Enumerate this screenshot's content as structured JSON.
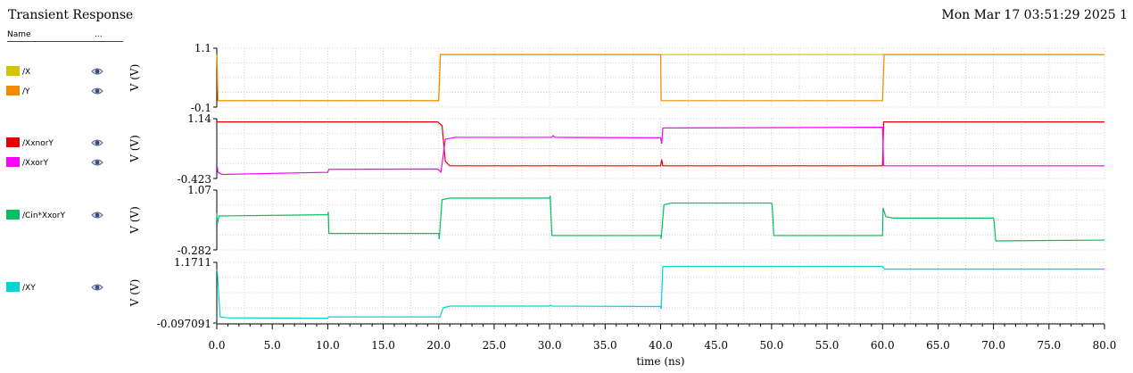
{
  "title": "Transient Response",
  "timestamp": "Mon Mar 17 03:51:29 2025  1",
  "legend": {
    "name_header": "Name",
    "more_header": "...",
    "items": [
      {
        "label": "/X",
        "color": "#d4c400"
      },
      {
        "label": "/Y",
        "color": "#f28a00"
      },
      {
        "label": "/XxnorY",
        "color": "#e60000"
      },
      {
        "label": "/XxorY",
        "color": "#ff00ff"
      },
      {
        "label": "/Cin*XxorY",
        "color": "#00c060"
      },
      {
        "label": "/XY",
        "color": "#00d6d6"
      }
    ],
    "visibility_icon": "eye-icon"
  },
  "chart_data": {
    "type": "line",
    "xlabel": "time (ns)",
    "xlim": [
      0,
      80
    ],
    "xticks": [
      "0.0",
      "5.0",
      "10.0",
      "15.0",
      "20.0",
      "25.0",
      "30.0",
      "35.0",
      "40.0",
      "45.0",
      "50.0",
      "55.0",
      "60.0",
      "65.0",
      "70.0",
      "75.0",
      "80.0"
    ],
    "grid": true,
    "panels": [
      {
        "ylabel": "V (V)",
        "ylim": [
          -0.1,
          1.1
        ],
        "ytick_labels": [
          "1.1",
          "-0.1"
        ],
        "series": [
          {
            "name": "/X",
            "color": "#d4c400",
            "x": [
              0,
              0.02,
              0.1,
              20,
              20.15,
              40,
              40.05,
              60,
              60.15,
              80
            ],
            "y": [
              1.0,
              1.0,
              0.0,
              0.0,
              1.0,
              1.0,
              1.0,
              1.0,
              1.0,
              1.0
            ]
          },
          {
            "name": "/Y",
            "color": "#f28a00",
            "x": [
              0,
              0.02,
              0.1,
              20,
              20.15,
              40,
              40.05,
              40.1,
              60,
              60.15,
              80
            ],
            "y": [
              1.0,
              1.0,
              0.0,
              0.0,
              1.0,
              1.0,
              0.0,
              0.0,
              0.0,
              1.0,
              1.0
            ]
          }
        ]
      },
      {
        "ylabel": "V (V)",
        "ylim": [
          -0.423,
          1.14
        ],
        "ytick_labels": [
          "1.14",
          "-0.423"
        ],
        "series": [
          {
            "name": "/XxnorY",
            "color": "#e60000",
            "x": [
              0,
              19.9,
              20.3,
              20.6,
              21,
              40,
              40.1,
              40.2,
              60,
              60.1,
              60.2,
              80
            ],
            "y": [
              1.1,
              1.1,
              1.0,
              0.0,
              -0.12,
              -0.12,
              0.05,
              -0.12,
              -0.12,
              1.1,
              1.1,
              1.1
            ]
          },
          {
            "name": "/XxorY",
            "color": "#ff00ff",
            "x": [
              0,
              0.05,
              0.1,
              0.5,
              10,
              10.1,
              19.9,
              20.2,
              20.6,
              21.5,
              30.2,
              30.3,
              30.5,
              40,
              40.1,
              40.2,
              60,
              60.1,
              60.2,
              80
            ],
            "y": [
              -0.15,
              -0.15,
              -0.3,
              -0.36,
              -0.3,
              -0.22,
              -0.21,
              -0.3,
              0.62,
              0.67,
              0.67,
              0.72,
              0.67,
              0.66,
              0.5,
              0.93,
              0.95,
              -0.12,
              -0.12,
              -0.12
            ]
          }
        ]
      },
      {
        "ylabel": "V (V)",
        "ylim": [
          -0.282,
          1.07
        ],
        "ytick_labels": [
          "1.07",
          "-0.282"
        ],
        "series": [
          {
            "name": "/Cin*XxorY",
            "color": "#00c060",
            "x": [
              0,
              0.05,
              0.2,
              10,
              10.05,
              10.1,
              20,
              20.05,
              20.3,
              21,
              30,
              30.05,
              30.2,
              40,
              40.05,
              40.3,
              41,
              50,
              50.05,
              50.2,
              60,
              60.05,
              60.3,
              61,
              70,
              70.05,
              70.2,
              80
            ],
            "y": [
              0.55,
              0.3,
              0.49,
              0.52,
              0.58,
              0.07,
              0.07,
              -0.06,
              0.88,
              0.92,
              0.92,
              0.97,
              0.02,
              0.02,
              -0.05,
              0.76,
              0.8,
              0.8,
              0.75,
              0.02,
              0.02,
              0.68,
              0.47,
              0.44,
              0.44,
              0.37,
              -0.11,
              -0.09
            ]
          }
        ]
      },
      {
        "ylabel": "V (V)",
        "ylim": [
          -0.097091,
          1.1711
        ],
        "ytick_labels": [
          "1.1711",
          "-0.097091"
        ],
        "series": [
          {
            "name": "/XY",
            "color": "#00d6d6",
            "x": [
              0,
              0.05,
              0.3,
              1,
              10,
              10.1,
              20,
              20.1,
              20.4,
              21,
              30,
              30.1,
              30.2,
              40,
              40.05,
              40.2,
              60,
              60.05,
              60.2,
              80
            ],
            "y": [
              1.05,
              1.0,
              0.0,
              -0.02,
              -0.03,
              0.0,
              0.0,
              -0.01,
              0.2,
              0.24,
              0.24,
              0.26,
              0.24,
              0.23,
              0.18,
              1.12,
              1.12,
              1.1,
              1.06,
              1.06
            ]
          }
        ]
      }
    ]
  }
}
